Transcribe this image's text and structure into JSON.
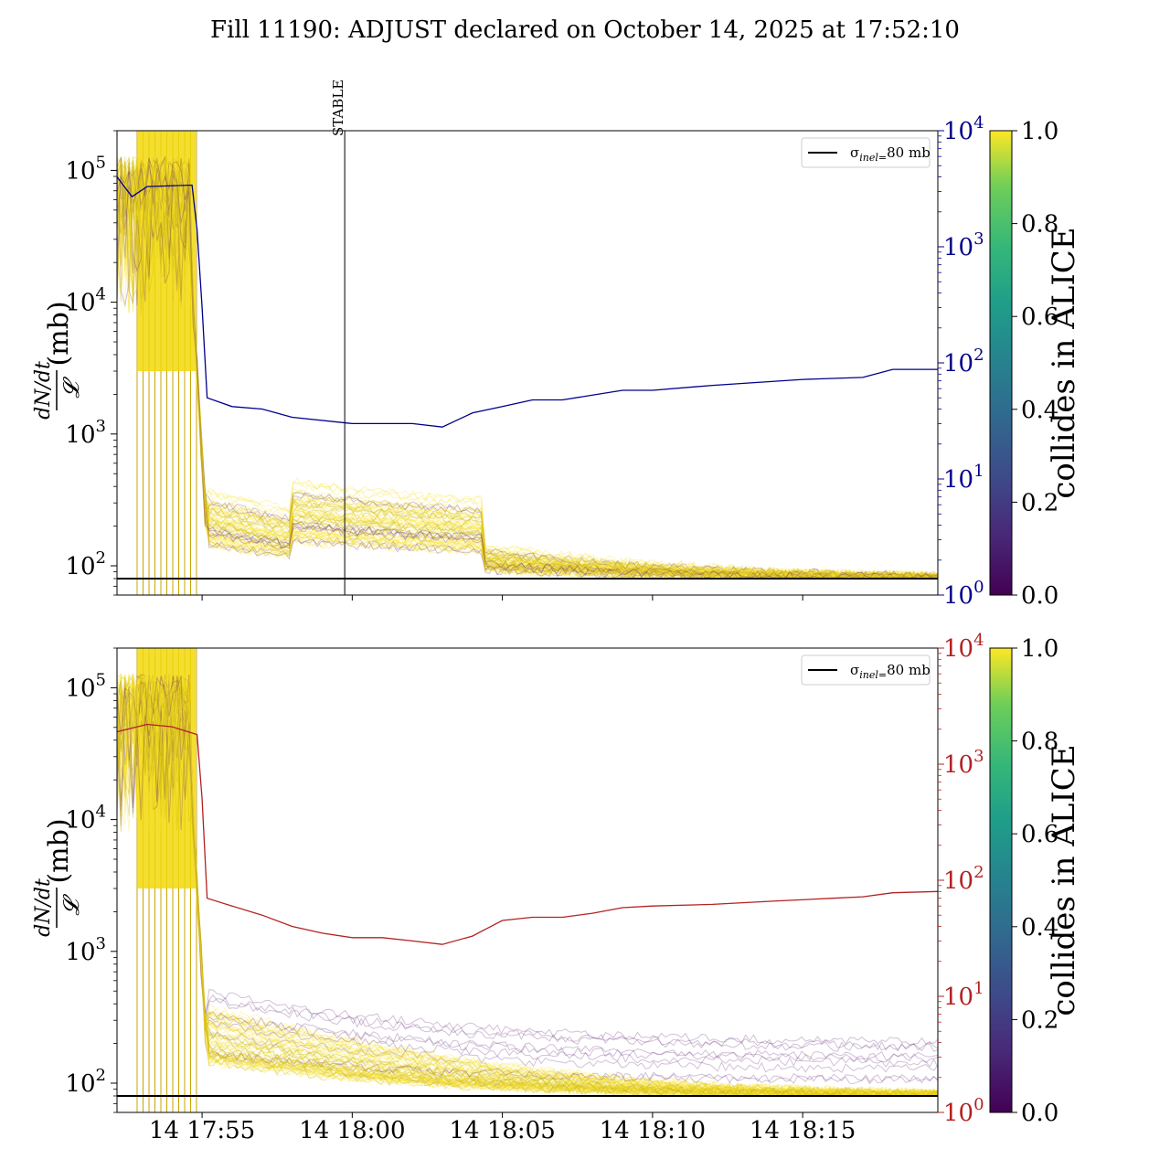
{
  "title": "Fill 11190: ADJUST declared on October 14, 2025 at 17:52:10",
  "chart_data": [
    {
      "type": "line",
      "panel": "top",
      "ylabel": "dN/dt / 𝓛 (mb)",
      "y_scale": "log",
      "ylim": [
        60,
        200000
      ],
      "y_ticks": [
        "10^2",
        "10^3",
        "10^4",
        "10^5"
      ],
      "y2_scale": "log",
      "y2lim": [
        1,
        10000
      ],
      "y2_ticks": [
        "10^0",
        "10^1",
        "10^2",
        "10^3",
        "10^4"
      ],
      "y2_color": "#00008b",
      "x_minutes_range": [
        "17:52:10",
        "18:19:30"
      ],
      "x_ticks_shown": false,
      "annotation": {
        "text": "STABLE",
        "x": "17:59:45"
      },
      "legend": {
        "label": "σinel=80 mb",
        "placement": "upper-right"
      },
      "reference_line_mb": 80,
      "right_axis_series": {
        "name": "",
        "color": "#00008b",
        "points": [
          [
            "17:52:10",
            4000
          ],
          [
            "17:52:40",
            2700
          ],
          [
            "17:53:10",
            3300
          ],
          [
            "17:54:40",
            3400
          ],
          [
            "17:54:50",
            1400
          ],
          [
            "17:55:00",
            300
          ],
          [
            "17:55:10",
            50
          ],
          [
            "17:56:00",
            42
          ],
          [
            "17:57:00",
            40
          ],
          [
            "17:58:00",
            34
          ],
          [
            "18:00:00",
            30
          ],
          [
            "18:01:00",
            30
          ],
          [
            "18:02:00",
            30
          ],
          [
            "18:03:00",
            28
          ],
          [
            "18:04:00",
            37
          ],
          [
            "18:05:00",
            42
          ],
          [
            "18:06:00",
            48
          ],
          [
            "18:07:00",
            48
          ],
          [
            "18:09:00",
            58
          ],
          [
            "18:10:00",
            58
          ],
          [
            "18:12:00",
            64
          ],
          [
            "18:15:00",
            72
          ],
          [
            "18:17:00",
            75
          ],
          [
            "18:18:00",
            88
          ],
          [
            "18:19:30",
            88
          ]
        ]
      },
      "colorbar": {
        "label": "collides in ALICE",
        "range": [
          0.0,
          1.0
        ],
        "ticks": [
          "0.0",
          "0.2",
          "0.4",
          "0.6",
          "0.8",
          "1.0"
        ],
        "colormap": "viridis"
      }
    },
    {
      "type": "line",
      "panel": "bottom",
      "ylabel": "dN/dt / 𝓛 (mb)",
      "y_scale": "log",
      "ylim": [
        60,
        200000
      ],
      "y_ticks": [
        "10^2",
        "10^3",
        "10^4",
        "10^5"
      ],
      "y2_scale": "log",
      "y2lim": [
        1,
        10000
      ],
      "y2_ticks": [
        "10^0",
        "10^1",
        "10^2",
        "10^3",
        "10^4"
      ],
      "y2_color": "#b22222",
      "x_ticks": [
        "14 17:55",
        "14 18:00",
        "14 18:05",
        "14 18:10",
        "14 18:15"
      ],
      "legend": {
        "label": "σinel=80 mb",
        "placement": "upper-right"
      },
      "reference_line_mb": 80,
      "right_axis_series": {
        "name": "",
        "color": "#b22222",
        "points": [
          [
            "17:52:10",
            1900
          ],
          [
            "17:53:10",
            2200
          ],
          [
            "17:54:00",
            2100
          ],
          [
            "17:54:50",
            1800
          ],
          [
            "17:55:00",
            500
          ],
          [
            "17:55:10",
            70
          ],
          [
            "17:56:00",
            60
          ],
          [
            "17:57:00",
            50
          ],
          [
            "17:58:00",
            40
          ],
          [
            "17:59:00",
            35
          ],
          [
            "18:00:00",
            32
          ],
          [
            "18:01:00",
            32
          ],
          [
            "18:02:00",
            30
          ],
          [
            "18:03:00",
            28
          ],
          [
            "18:04:00",
            33
          ],
          [
            "18:05:00",
            45
          ],
          [
            "18:06:00",
            48
          ],
          [
            "18:07:00",
            48
          ],
          [
            "18:08:00",
            52
          ],
          [
            "18:09:00",
            58
          ],
          [
            "18:10:00",
            60
          ],
          [
            "18:12:00",
            62
          ],
          [
            "18:14:00",
            66
          ],
          [
            "18:16:00",
            70
          ],
          [
            "18:17:00",
            72
          ],
          [
            "18:18:00",
            78
          ],
          [
            "18:19:30",
            80
          ]
        ]
      },
      "colorbar": {
        "label": "collides in ALICE",
        "range": [
          0.0,
          1.0
        ],
        "ticks": [
          "0.0",
          "0.2",
          "0.4",
          "0.6",
          "0.8",
          "1.0"
        ],
        "colormap": "viridis"
      }
    }
  ]
}
